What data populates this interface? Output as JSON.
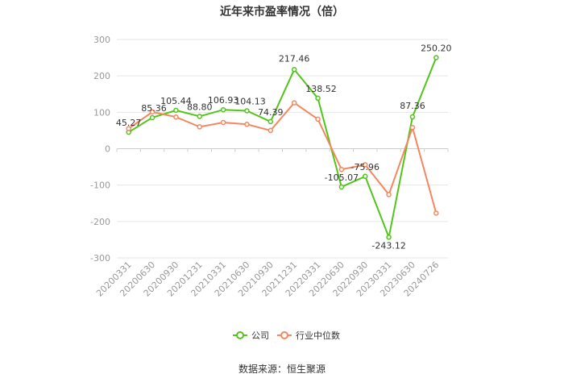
{
  "chart_data": {
    "type": "line",
    "title": "近年来市盈率情况（倍）",
    "source": "数据来源：恒生聚源",
    "categories": [
      "20200331",
      "20200630",
      "20200930",
      "20201231",
      "20210331",
      "20210630",
      "20210930",
      "20211231",
      "20220331",
      "20220630",
      "20220930",
      "20230331",
      "20230630",
      "20240726"
    ],
    "ylim": [
      -300,
      300
    ],
    "yticks": [
      300,
      200,
      100,
      0,
      -100,
      -200,
      -300
    ],
    "series": [
      {
        "name": "公司",
        "color": "#52c41a",
        "values": [
          45.27,
          85.36,
          105.44,
          88.8,
          106.93,
          104.13,
          74.39,
          217.46,
          138.52,
          -105.07,
          -75.96,
          -243.12,
          87.36,
          250.2
        ],
        "labels": [
          "45.27",
          "85.36",
          "105.44",
          "88.80",
          "106.93",
          "104.13",
          "74.39",
          "217.46",
          "138.52",
          "-105.07",
          "-75.96",
          "-243.12",
          "87.36",
          "250.20"
        ]
      },
      {
        "name": "行业中位数",
        "color": "#f5875f",
        "values": [
          55,
          101,
          87,
          60,
          72,
          67,
          50,
          126,
          81,
          -57,
          -44,
          -126,
          58,
          -177
        ]
      }
    ],
    "legend_position": "bottom",
    "grid": true
  }
}
